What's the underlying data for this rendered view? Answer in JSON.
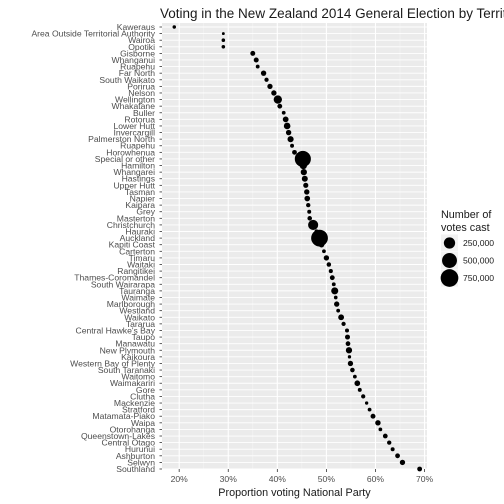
{
  "chart_data": {
    "type": "scatter",
    "title": "Voting in the New Zealand 2014 General Election by Territorial Authority",
    "xlabel": "Proportion voting National Party",
    "ylabel": "",
    "xlim": [
      0.165,
      0.705
    ],
    "x_ticks": [
      0.2,
      0.3,
      0.4,
      0.5,
      0.6,
      0.7
    ],
    "x_tick_labels": [
      "20%",
      "30%",
      "40%",
      "50%",
      "60%",
      "70%"
    ],
    "grid": true,
    "legend": {
      "title_lines": [
        "Number of",
        "votes cast"
      ],
      "position": "right",
      "entries": [
        {
          "label": "250,000",
          "value": 250000
        },
        {
          "label": "500,000",
          "value": 500000
        },
        {
          "label": "750,000",
          "value": 750000
        }
      ]
    },
    "points": [
      {
        "name": "Kaweraus",
        "x": 0.19,
        "votes": 3000
      },
      {
        "name": "Area Outside Territorial Authority",
        "x": 0.29,
        "votes": 400
      },
      {
        "name": "Wairoa",
        "x": 0.29,
        "votes": 3500
      },
      {
        "name": "Opotiki",
        "x": 0.29,
        "votes": 3800
      },
      {
        "name": "Gisborne",
        "x": 0.35,
        "votes": 19000
      },
      {
        "name": "Whanganui",
        "x": 0.357,
        "votes": 20000
      },
      {
        "name": "Ruapehu",
        "x": 0.36,
        "votes": 5500
      },
      {
        "name": "Far North",
        "x": 0.372,
        "votes": 27000
      },
      {
        "name": "South Waikato",
        "x": 0.378,
        "votes": 10000
      },
      {
        "name": "Porirua",
        "x": 0.385,
        "votes": 25000
      },
      {
        "name": "Nelson",
        "x": 0.393,
        "votes": 26000
      },
      {
        "name": "Wellington",
        "x": 0.401,
        "votes": 108000
      },
      {
        "name": "Whakatane",
        "x": 0.405,
        "votes": 18000
      },
      {
        "name": "Buller",
        "x": 0.413,
        "votes": 5500
      },
      {
        "name": "Rotorua",
        "x": 0.417,
        "votes": 35000
      },
      {
        "name": "Lower Hutt",
        "x": 0.42,
        "votes": 55000
      },
      {
        "name": "Invercargill",
        "x": 0.423,
        "votes": 28000
      },
      {
        "name": "Palmerston North",
        "x": 0.427,
        "votes": 43000
      },
      {
        "name": "Ruapehu",
        "x": 0.43,
        "votes": 6500
      },
      {
        "name": "Horowhenua",
        "x": 0.435,
        "votes": 17000
      },
      {
        "name": "Special or other",
        "x": 0.452,
        "votes": 600000
      },
      {
        "name": "Hamilton",
        "x": 0.453,
        "votes": 75000
      },
      {
        "name": "Whangarei",
        "x": 0.454,
        "votes": 45000
      },
      {
        "name": "Hastings",
        "x": 0.456,
        "votes": 40000
      },
      {
        "name": "Upper Hutt",
        "x": 0.458,
        "votes": 23000
      },
      {
        "name": "Tasman",
        "x": 0.46,
        "votes": 27000
      },
      {
        "name": "Napier",
        "x": 0.461,
        "votes": 32000
      },
      {
        "name": "Kaipara",
        "x": 0.463,
        "votes": 11000
      },
      {
        "name": "Grey",
        "x": 0.465,
        "votes": 7000
      },
      {
        "name": "Masterton",
        "x": 0.466,
        "votes": 14000
      },
      {
        "name": "Christchurch",
        "x": 0.473,
        "votes": 190000
      },
      {
        "name": "Hauraki",
        "x": 0.48,
        "votes": 11000
      },
      {
        "name": "Auckland",
        "x": 0.486,
        "votes": 660000
      },
      {
        "name": "Kapiti Coast",
        "x": 0.49,
        "votes": 31000
      },
      {
        "name": "Carterton",
        "x": 0.495,
        "votes": 5000
      },
      {
        "name": "Timaru",
        "x": 0.5,
        "votes": 27000
      },
      {
        "name": "Waitaki",
        "x": 0.505,
        "votes": 13000
      },
      {
        "name": "Rangitikei",
        "x": 0.509,
        "votes": 8000
      },
      {
        "name": "Thames-Coromandel",
        "x": 0.512,
        "votes": 18000
      },
      {
        "name": "South Wairarapa",
        "x": 0.515,
        "votes": 6000
      },
      {
        "name": "Tauranga",
        "x": 0.517,
        "votes": 68000
      },
      {
        "name": "Waimate",
        "x": 0.519,
        "votes": 4500
      },
      {
        "name": "Marlborough",
        "x": 0.521,
        "votes": 26000
      },
      {
        "name": "Westland",
        "x": 0.524,
        "votes": 5500
      },
      {
        "name": "Waikato",
        "x": 0.53,
        "votes": 36000
      },
      {
        "name": "Tararua",
        "x": 0.535,
        "votes": 10000
      },
      {
        "name": "Central Hawke's Bay",
        "x": 0.542,
        "votes": 7500
      },
      {
        "name": "Taupo",
        "x": 0.543,
        "votes": 20000
      },
      {
        "name": "Manawatu",
        "x": 0.544,
        "votes": 16000
      },
      {
        "name": "New Plymouth",
        "x": 0.546,
        "votes": 46000
      },
      {
        "name": "Kaikoura",
        "x": 0.547,
        "votes": 2300
      },
      {
        "name": "Western Bay of Plenty",
        "x": 0.549,
        "votes": 26000
      },
      {
        "name": "South Taranaki",
        "x": 0.553,
        "votes": 14000
      },
      {
        "name": "Waitomo",
        "x": 0.558,
        "votes": 5000
      },
      {
        "name": "Waimakariri",
        "x": 0.563,
        "votes": 33000
      },
      {
        "name": "Gore",
        "x": 0.568,
        "votes": 7000
      },
      {
        "name": "Clutha",
        "x": 0.575,
        "votes": 10000
      },
      {
        "name": "Mackenzie",
        "x": 0.582,
        "votes": 2500
      },
      {
        "name": "Stratford",
        "x": 0.588,
        "votes": 5500
      },
      {
        "name": "Matamata-Piako",
        "x": 0.595,
        "votes": 19000
      },
      {
        "name": "Waipa",
        "x": 0.605,
        "votes": 28000
      },
      {
        "name": "Otorohanga",
        "x": 0.61,
        "votes": 5000
      },
      {
        "name": "Queenstown-Lakes",
        "x": 0.62,
        "votes": 17000
      },
      {
        "name": "Central Otago",
        "x": 0.628,
        "votes": 11000
      },
      {
        "name": "Hurunui",
        "x": 0.635,
        "votes": 7000
      },
      {
        "name": "Ashburton",
        "x": 0.645,
        "votes": 17000
      },
      {
        "name": "Selwyn",
        "x": 0.655,
        "votes": 26000
      },
      {
        "name": "Southland",
        "x": 0.69,
        "votes": 18000
      }
    ]
  }
}
